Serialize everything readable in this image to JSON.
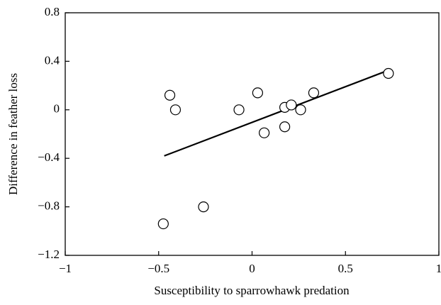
{
  "chart_data": {
    "type": "scatter",
    "x_label": "Susceptibility to sparrowhawk predation",
    "y_label": "Difference in feather loss",
    "series": [
      {
        "x": [
          -0.44,
          -0.41,
          -0.26,
          -0.475,
          -0.07,
          0.03,
          0.065,
          0.175,
          0.21,
          0.175,
          0.26,
          0.33,
          0.73
        ],
        "values": [
          0.12,
          0,
          -0.8,
          -0.94,
          0,
          0.14,
          -0.19,
          0.02,
          0.04,
          -0.14,
          0,
          0.14,
          0.3
        ],
        "color": "#000000"
      }
    ],
    "fit_line": {
      "x": [
        -0.47,
        0.72
      ],
      "values": [
        -0.38,
        0.32
      ],
      "color": "#000000"
    },
    "xlim": [
      -1,
      1
    ],
    "xticks": [
      {
        "value": -1,
        "label": "−1"
      },
      {
        "value": -0.5,
        "label": "−0.5"
      },
      0,
      0.5,
      1
    ],
    "ylim": [
      -1.2,
      0.8
    ],
    "yticks": [
      {
        "value": -1.2,
        "label": "−1.2"
      },
      {
        "value": -0.8,
        "label": "−0.8"
      },
      {
        "value": -0.4,
        "label": "−0.4"
      },
      0,
      0.4,
      0.8
    ],
    "grid": false
  }
}
